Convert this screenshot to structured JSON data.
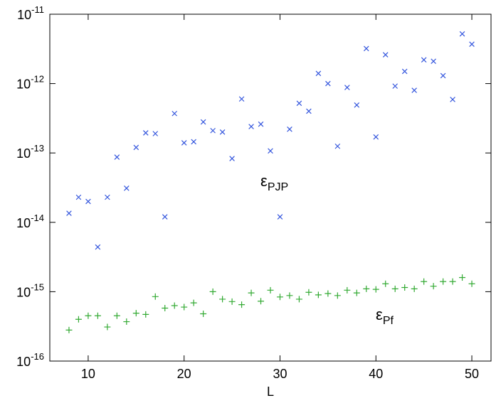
{
  "chart_data": {
    "type": "scatter",
    "x_label": "L",
    "log_y": true,
    "xlim": [
      6,
      52
    ],
    "ylim": [
      1e-16,
      1e-11
    ],
    "xticks": [
      10,
      20,
      30,
      40,
      50
    ],
    "yticks": [
      {
        "value": 1e-16,
        "label": "10",
        "power": "-16"
      },
      {
        "value": 1e-15,
        "label": "10",
        "power": "-15"
      },
      {
        "value": 1e-14,
        "label": "10",
        "power": "-14"
      },
      {
        "value": 1e-13,
        "label": "10",
        "power": "-13"
      },
      {
        "value": 1e-12,
        "label": "10",
        "power": "-12"
      },
      {
        "value": 1e-11,
        "label": "10",
        "power": "-11"
      }
    ],
    "x": [
      8,
      9,
      10,
      11,
      12,
      13,
      14,
      15,
      16,
      17,
      18,
      19,
      20,
      21,
      22,
      23,
      24,
      25,
      26,
      27,
      28,
      29,
      30,
      31,
      32,
      33,
      34,
      35,
      36,
      37,
      38,
      39,
      40,
      41,
      42,
      43,
      44,
      45,
      46,
      47,
      48,
      49,
      50
    ],
    "series": [
      {
        "name": "PJP",
        "color": "#3355dd",
        "marker": "x",
        "values": [
          1.35e-14,
          2.3e-14,
          2e-14,
          4.4e-15,
          2.3e-14,
          8.7e-14,
          3.1e-14,
          1.2e-13,
          1.95e-13,
          1.9e-13,
          1.2e-14,
          3.7e-13,
          1.4e-13,
          1.45e-13,
          2.8e-13,
          2.1e-13,
          2e-13,
          8.3e-14,
          6e-13,
          2.4e-13,
          2.6e-13,
          1.07e-13,
          1.2e-14,
          2.2e-13,
          5.2e-13,
          4e-13,
          1.4e-12,
          1e-12,
          1.25e-13,
          8.8e-13,
          4.9e-13,
          3.2e-12,
          1.7e-13,
          2.6e-12,
          9.2e-13,
          1.5e-12,
          8e-13,
          2.2e-12,
          2.1e-12,
          1.3e-12,
          5.9e-13,
          5.2e-12,
          3.7e-12
        ]
      },
      {
        "name": "Pf",
        "color": "#33aa33",
        "marker": "+",
        "values": [
          2.8e-16,
          4e-16,
          4.5e-16,
          4.5e-16,
          3.1e-16,
          4.5e-16,
          3.7e-16,
          4.9e-16,
          4.7e-16,
          8.5e-16,
          5.8e-16,
          6.3e-16,
          6e-16,
          6.9e-16,
          4.8e-16,
          1e-15,
          7.8e-16,
          7.2e-16,
          6.5e-16,
          9.6e-16,
          7.3e-16,
          1.05e-15,
          8.4e-16,
          8.8e-16,
          7.8e-16,
          9.8e-16,
          9e-16,
          9.4e-16,
          8.8e-16,
          1.05e-15,
          9.6e-16,
          1.1e-15,
          1.08e-15,
          1.3e-15,
          1.1e-15,
          1.15e-15,
          1.1e-15,
          1.4e-15,
          1.2e-15,
          1.4e-15,
          1.4e-15,
          1.6e-15,
          1.3e-15
        ]
      }
    ],
    "annotations": [
      {
        "text": "ε",
        "sub": "PJP"
      },
      {
        "text": "ε",
        "sub": "Pf"
      }
    ]
  }
}
